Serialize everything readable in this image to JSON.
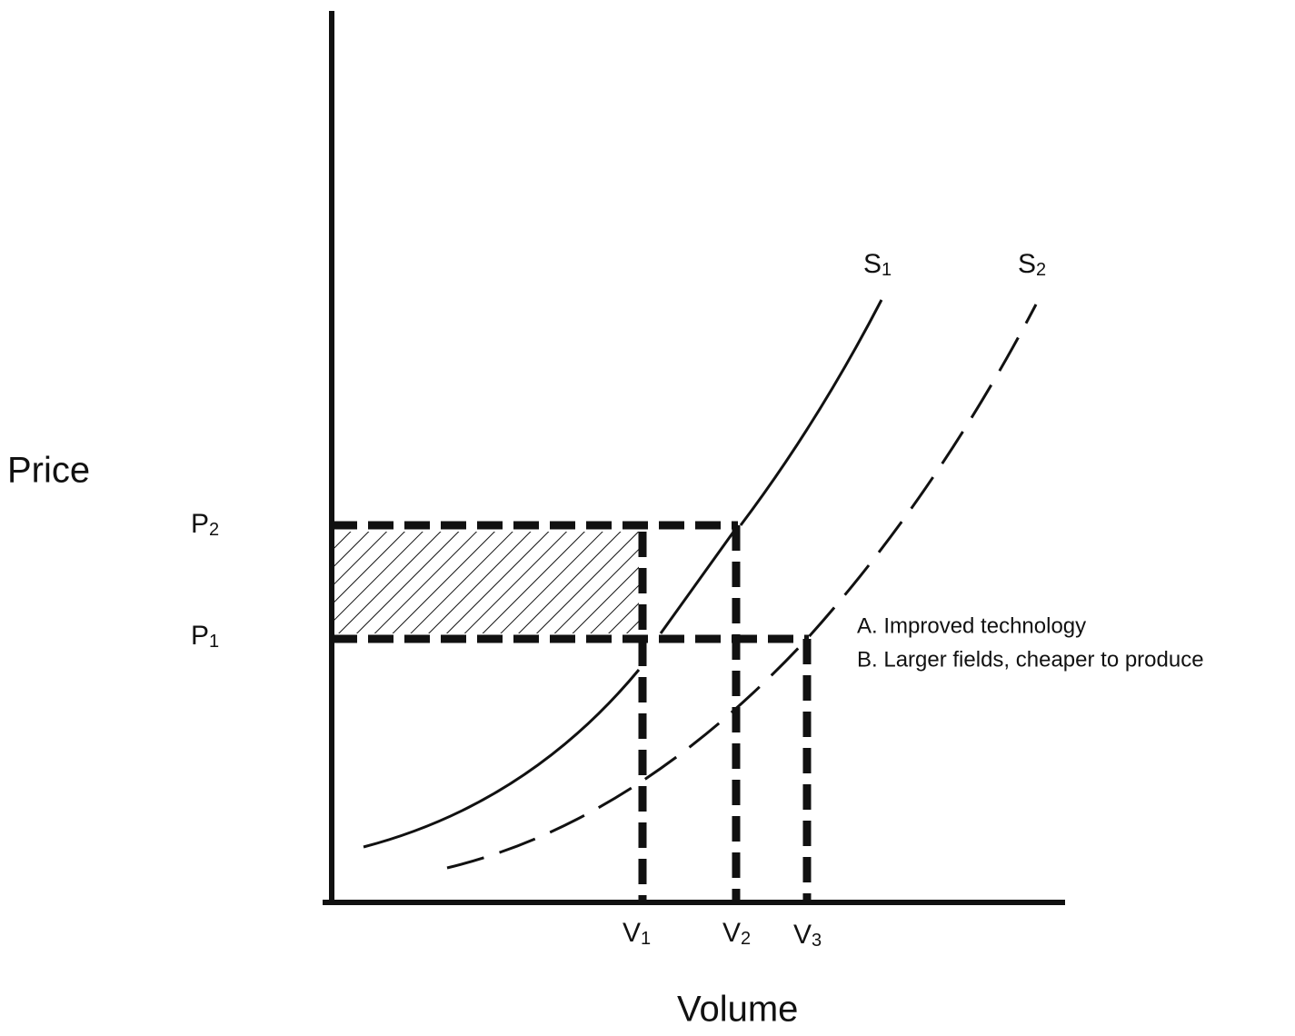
{
  "axes": {
    "y_label": "Price",
    "x_label": "Volume"
  },
  "price_levels": [
    {
      "main": "P",
      "sub": "2"
    },
    {
      "main": "P",
      "sub": "1"
    }
  ],
  "volume_levels": [
    {
      "main": "V",
      "sub": "1"
    },
    {
      "main": "V",
      "sub": "2"
    },
    {
      "main": "V",
      "sub": "3"
    }
  ],
  "curves": [
    {
      "main": "S",
      "sub": "1"
    },
    {
      "main": "S",
      "sub": "2"
    }
  ],
  "notes": [
    "A. Improved technology",
    "B. Larger fields, cheaper to produce"
  ]
}
